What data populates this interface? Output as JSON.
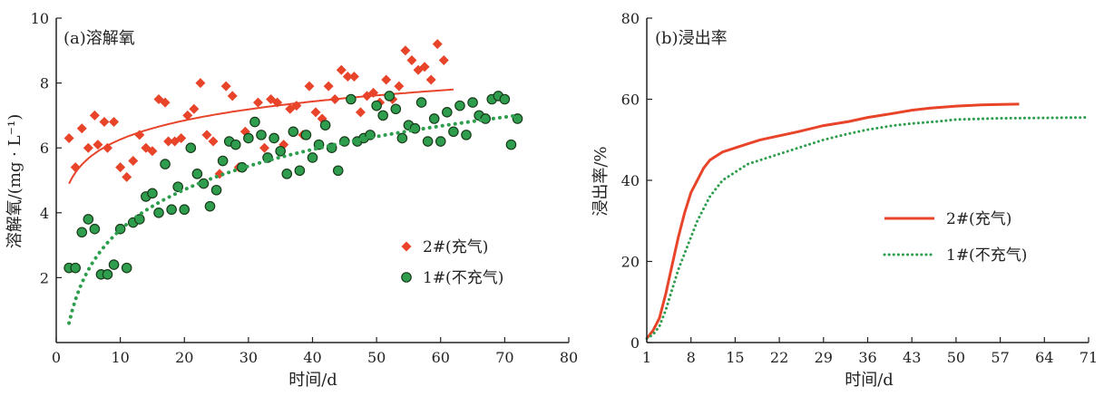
{
  "chart_data": [
    {
      "type": "scatter",
      "title": "(a)溶解氧",
      "xlabel": "时间/d",
      "ylabel": "溶解氧/(mg · L⁻¹)",
      "xlim": [
        0,
        80
      ],
      "ylim": [
        0,
        10
      ],
      "xticks": [
        "0",
        "10",
        "20",
        "30",
        "40",
        "50",
        "60",
        "70",
        "80"
      ],
      "yticks": [
        "2",
        "4",
        "6",
        "8",
        "10"
      ],
      "legend_position": "right-lower",
      "series": [
        {
          "name": "2#(充气)",
          "marker": "diamond",
          "color": "#e8442a",
          "points": [
            [
              2,
              6.3
            ],
            [
              3,
              5.4
            ],
            [
              4,
              6.6
            ],
            [
              5,
              6.0
            ],
            [
              6,
              7.0
            ],
            [
              6.5,
              6.1
            ],
            [
              7.5,
              6.8
            ],
            [
              8,
              6.0
            ],
            [
              9,
              6.8
            ],
            [
              10,
              5.4
            ],
            [
              11,
              5.1
            ],
            [
              12,
              5.6
            ],
            [
              13,
              6.4
            ],
            [
              14,
              6.0
            ],
            [
              15,
              5.9
            ],
            [
              16,
              7.5
            ],
            [
              17,
              7.4
            ],
            [
              17.5,
              6.2
            ],
            [
              18.5,
              6.2
            ],
            [
              19.5,
              6.3
            ],
            [
              20.5,
              7.0
            ],
            [
              21.5,
              7.2
            ],
            [
              22.5,
              8.0
            ],
            [
              23.5,
              6.4
            ],
            [
              24.5,
              6.2
            ],
            [
              25.5,
              5.2
            ],
            [
              26.5,
              7.9
            ],
            [
              27.5,
              7.6
            ],
            [
              28.5,
              5.4
            ],
            [
              29.5,
              6.5
            ],
            [
              31.5,
              7.4
            ],
            [
              32.5,
              6.0
            ],
            [
              33.5,
              7.5
            ],
            [
              34.5,
              7.4
            ],
            [
              35.5,
              6.1
            ],
            [
              36.5,
              7.2
            ],
            [
              37.5,
              7.3
            ],
            [
              38.5,
              6.4
            ],
            [
              39.5,
              7.9
            ],
            [
              40.5,
              7.1
            ],
            [
              41.5,
              6.9
            ],
            [
              42.5,
              7.9
            ],
            [
              43.5,
              7.5
            ],
            [
              44.5,
              8.4
            ],
            [
              45.5,
              8.2
            ],
            [
              46.5,
              8.2
            ],
            [
              47.5,
              7.1
            ],
            [
              48.5,
              7.6
            ],
            [
              49.5,
              7.7
            ],
            [
              50.5,
              7.4
            ],
            [
              51.5,
              8.1
            ],
            [
              52.5,
              7.5
            ],
            [
              53.5,
              7.9
            ],
            [
              54.5,
              9.0
            ],
            [
              55.5,
              8.7
            ],
            [
              56.5,
              8.4
            ],
            [
              57.5,
              8.5
            ],
            [
              58.5,
              8.1
            ],
            [
              59.5,
              9.2
            ],
            [
              60.5,
              8.7
            ]
          ],
          "fit": {
            "style": "solid",
            "x_range": [
              2,
              62
            ],
            "y_start": 4.9,
            "y_end": 7.8
          }
        },
        {
          "name": "1#(不充气)",
          "marker": "circle",
          "color": "#2e9e4e",
          "points": [
            [
              2,
              2.3
            ],
            [
              3,
              2.3
            ],
            [
              4,
              3.4
            ],
            [
              5,
              3.8
            ],
            [
              6,
              3.5
            ],
            [
              7,
              2.1
            ],
            [
              8,
              2.1
            ],
            [
              9,
              2.4
            ],
            [
              10,
              3.5
            ],
            [
              11,
              2.3
            ],
            [
              12,
              3.7
            ],
            [
              13,
              3.8
            ],
            [
              14,
              4.5
            ],
            [
              15,
              4.6
            ],
            [
              16,
              4.0
            ],
            [
              17,
              5.5
            ],
            [
              18,
              4.1
            ],
            [
              19,
              4.8
            ],
            [
              20,
              4.1
            ],
            [
              21,
              6.0
            ],
            [
              22,
              5.2
            ],
            [
              23,
              4.9
            ],
            [
              24,
              4.2
            ],
            [
              25,
              4.7
            ],
            [
              26,
              5.6
            ],
            [
              27,
              6.2
            ],
            [
              28,
              6.1
            ],
            [
              29,
              5.4
            ],
            [
              30,
              6.3
            ],
            [
              31,
              6.8
            ],
            [
              32,
              6.4
            ],
            [
              33,
              5.7
            ],
            [
              34,
              6.3
            ],
            [
              35,
              5.9
            ],
            [
              36,
              5.2
            ],
            [
              37,
              6.5
            ],
            [
              38,
              5.3
            ],
            [
              39,
              6.4
            ],
            [
              40,
              5.7
            ],
            [
              41,
              6.1
            ],
            [
              42,
              6.7
            ],
            [
              43,
              6.0
            ],
            [
              44,
              5.3
            ],
            [
              45,
              6.2
            ],
            [
              46,
              7.5
            ],
            [
              47,
              6.2
            ],
            [
              48,
              6.3
            ],
            [
              49,
              6.4
            ],
            [
              50,
              7.3
            ],
            [
              51,
              7.0
            ],
            [
              52,
              7.6
            ],
            [
              53,
              7.2
            ],
            [
              54,
              6.3
            ],
            [
              55,
              6.7
            ],
            [
              56,
              6.6
            ],
            [
              57,
              7.4
            ],
            [
              58,
              6.2
            ],
            [
              59,
              6.9
            ],
            [
              60,
              6.2
            ],
            [
              61,
              7.1
            ],
            [
              62,
              6.5
            ],
            [
              63,
              7.3
            ],
            [
              64,
              6.4
            ],
            [
              65,
              7.4
            ],
            [
              66,
              7.0
            ],
            [
              67,
              6.9
            ],
            [
              68,
              7.5
            ],
            [
              69,
              7.6
            ],
            [
              70,
              7.5
            ],
            [
              71,
              6.1
            ],
            [
              72,
              6.9
            ]
          ],
          "fit": {
            "style": "dotted",
            "x_range": [
              2,
              72
            ],
            "y_start": 0.6,
            "y_end": 7.0
          }
        }
      ]
    },
    {
      "type": "line",
      "title": "(b)浸出率",
      "xlabel": "时间/d",
      "ylabel": "浸出率/%",
      "xlim": [
        1,
        71
      ],
      "ylim": [
        0,
        80
      ],
      "xticks": [
        "1",
        "8",
        "15",
        "22",
        "29",
        "36",
        "43",
        "50",
        "57",
        "64",
        "71"
      ],
      "yticks": [
        "0",
        "20",
        "40",
        "60",
        "80"
      ],
      "legend_position": "right-middle",
      "series": [
        {
          "name": "2#(充气)",
          "style": "solid",
          "color": "#e8442a",
          "points": [
            [
              1,
              1
            ],
            [
              2,
              3
            ],
            [
              3,
              6
            ],
            [
              4,
              12
            ],
            [
              5,
              19
            ],
            [
              6,
              26
            ],
            [
              7,
              32
            ],
            [
              8,
              37
            ],
            [
              9,
              40
            ],
            [
              10,
              43
            ],
            [
              11,
              45
            ],
            [
              12,
              46
            ],
            [
              13,
              47
            ],
            [
              15,
              48
            ],
            [
              17,
              49
            ],
            [
              19,
              50
            ],
            [
              22,
              51
            ],
            [
              25,
              52
            ],
            [
              29,
              53.5
            ],
            [
              33,
              54.5
            ],
            [
              36,
              55.5
            ],
            [
              40,
              56.5
            ],
            [
              43,
              57.3
            ],
            [
              46,
              57.8
            ],
            [
              50,
              58.3
            ],
            [
              54,
              58.6
            ],
            [
              57,
              58.7
            ],
            [
              60,
              58.8
            ]
          ]
        },
        {
          "name": "1#(不充气)",
          "style": "dotted",
          "color": "#2e9e4e",
          "points": [
            [
              1,
              1
            ],
            [
              2,
              2
            ],
            [
              3,
              4
            ],
            [
              4,
              8
            ],
            [
              5,
              13
            ],
            [
              6,
              18
            ],
            [
              7,
              22
            ],
            [
              8,
              26
            ],
            [
              9,
              30
            ],
            [
              10,
              33
            ],
            [
              11,
              36
            ],
            [
              12,
              38
            ],
            [
              13,
              40
            ],
            [
              15,
              42
            ],
            [
              17,
              44
            ],
            [
              19,
              45
            ],
            [
              22,
              46.5
            ],
            [
              25,
              48
            ],
            [
              29,
              50
            ],
            [
              33,
              51.5
            ],
            [
              36,
              52.5
            ],
            [
              40,
              53.5
            ],
            [
              43,
              54
            ],
            [
              47,
              54.5
            ],
            [
              50,
              55
            ],
            [
              57,
              55.3
            ],
            [
              64,
              55.4
            ],
            [
              71,
              55.5
            ]
          ]
        }
      ]
    }
  ]
}
